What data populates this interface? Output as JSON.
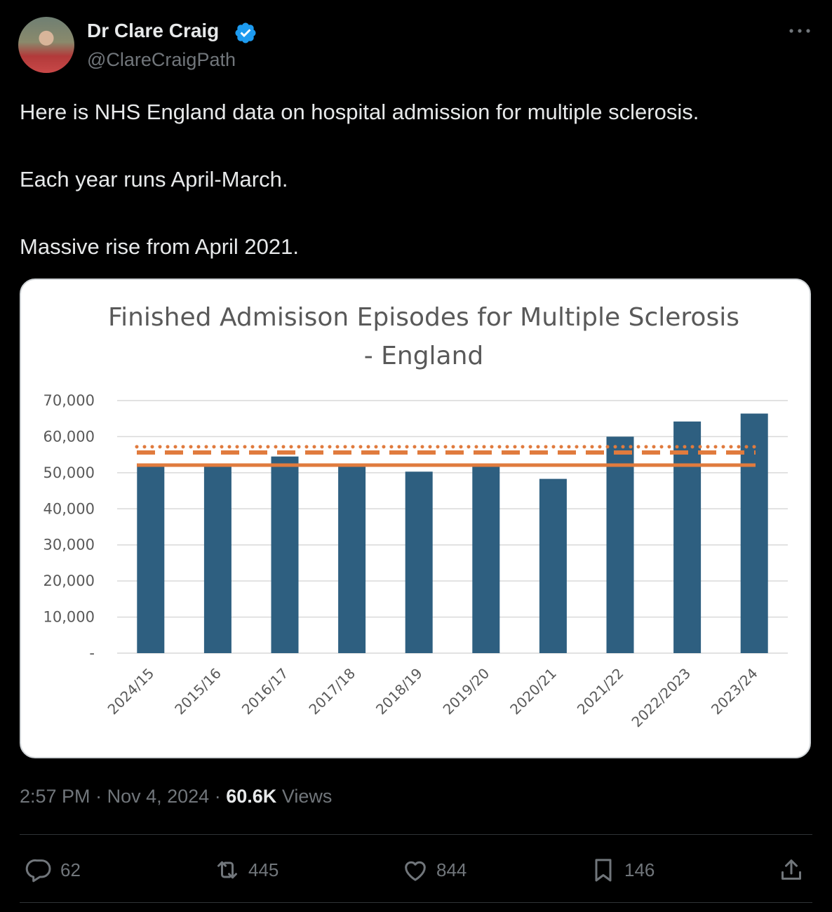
{
  "author": {
    "display_name": "Dr Clare Craig",
    "handle": "@ClareCraigPath",
    "verified": true,
    "avatar_icon": "profile-photo"
  },
  "tweet": {
    "paragraphs": [
      "Here is NHS England data on hospital admission for multiple sclerosis.",
      "Each year runs April-March.",
      "Massive rise from April 2021."
    ]
  },
  "meta": {
    "time": "2:57 PM",
    "sep1": "·",
    "date": "Nov 4, 2024",
    "sep2": "·",
    "views_count": "60.6K",
    "views_label": "Views"
  },
  "actions": {
    "replies": "62",
    "reposts": "445",
    "likes": "844",
    "bookmarks": "146"
  },
  "colors": {
    "bar": "#2e5f80",
    "reference_lines": "#e07b3e",
    "verified": "#1d9bf0"
  },
  "chart_data": {
    "type": "bar",
    "title": "Finished Admisison Episodes for Multiple Sclerosis - England",
    "title_lines": [
      "Finished Admisison Episodes for Multiple Sclerosis",
      "- England"
    ],
    "categories": [
      "2024/15",
      "2015/16",
      "2016/17",
      "2017/18",
      "2018/19",
      "2019/20",
      "2020/21",
      "2021/22",
      "2022/2023",
      "2023/24"
    ],
    "values": [
      52300,
      51900,
      54500,
      51700,
      50300,
      52000,
      48300,
      60000,
      64200,
      66400
    ],
    "ylim": [
      0,
      70000
    ],
    "yticks": [
      0,
      10000,
      20000,
      30000,
      40000,
      50000,
      60000,
      70000
    ],
    "ytick_labels": [
      "-",
      "10,000",
      "20,000",
      "30,000",
      "40,000",
      "50,000",
      "60,000",
      "70,000"
    ],
    "reference_lines": [
      {
        "style": "solid",
        "value": 52100
      },
      {
        "style": "dashed",
        "value": 55600
      },
      {
        "style": "dotted",
        "value": 57200
      }
    ],
    "grid": true,
    "legend": "none"
  }
}
